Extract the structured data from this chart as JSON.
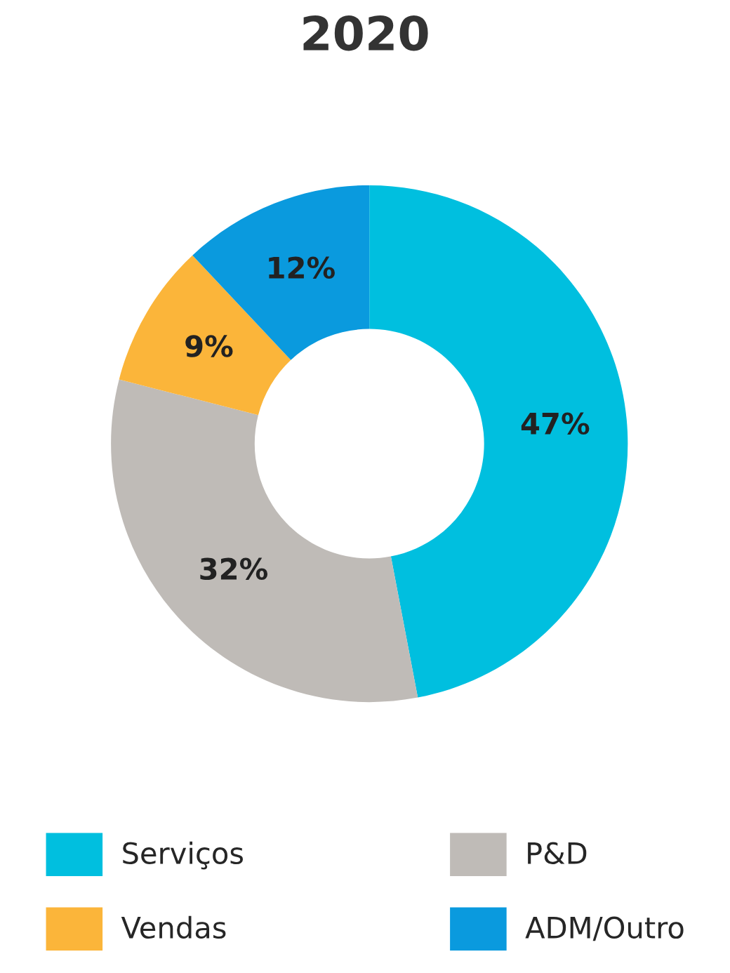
{
  "chart_data": {
    "type": "donut",
    "title": "2020",
    "categories": [
      "Serviços",
      "P&D",
      "Vendas",
      "ADM/Outro"
    ],
    "values": [
      47,
      32,
      9,
      12
    ],
    "colors": [
      "#00bfdf",
      "#bfbbb7",
      "#fbb53a",
      "#0a9ade"
    ],
    "value_labels": [
      "47%",
      "32%",
      "9%",
      "12%"
    ],
    "legend": "bottom"
  }
}
